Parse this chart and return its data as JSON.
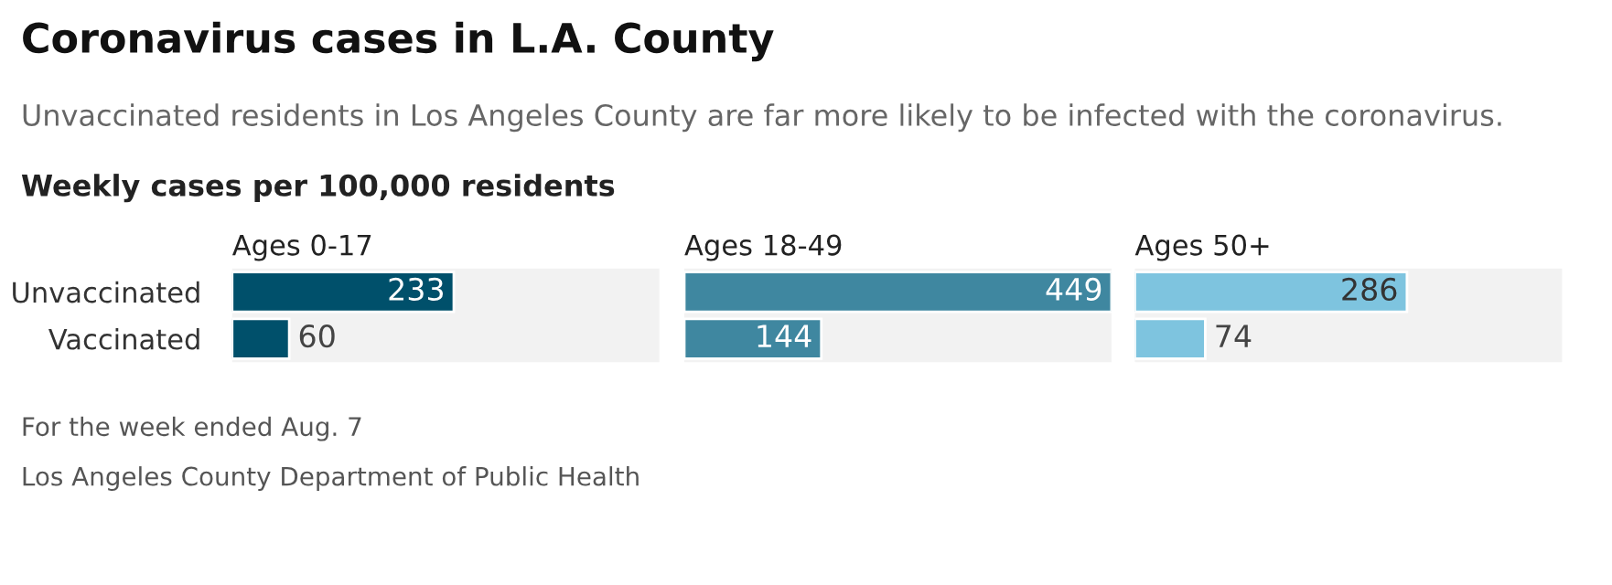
{
  "chart_data": [
    {
      "type": "bar",
      "orientation": "horizontal",
      "title": "Coronavirus cases in L.A. County",
      "subtitle": "Unvaccinated residents in Los Angeles County are far more likely to be infected with the coronavirus.",
      "annotations": [
        "Weekly cases per 100,000 residents",
        "For the week ended Aug. 7",
        "Los Angeles County Department of Public Health"
      ],
      "xlabel": "Ages 0-17",
      "categories": [
        "Unvaccinated",
        "Vaccinated"
      ],
      "values": [
        233,
        60
      ],
      "color": "#00506b",
      "xlim": [
        0,
        449
      ],
      "data_labels": true,
      "tick_labels": "y"
    },
    {
      "type": "bar",
      "orientation": "horizontal",
      "xlabel": "Ages 18-49",
      "categories": [
        null,
        null
      ],
      "values": [
        449,
        144
      ],
      "color": "#3f87a0",
      "xlim": [
        0,
        449
      ],
      "data_labels": true,
      "tick_labels": false
    },
    {
      "type": "bar",
      "orientation": "horizontal",
      "xlabel": "Ages 50+",
      "categories": [
        null,
        null
      ],
      "values": [
        286,
        74
      ],
      "color": "#7ec4df",
      "xlim": [
        0,
        449
      ],
      "data_labels": true,
      "tick_labels": false
    }
  ]
}
